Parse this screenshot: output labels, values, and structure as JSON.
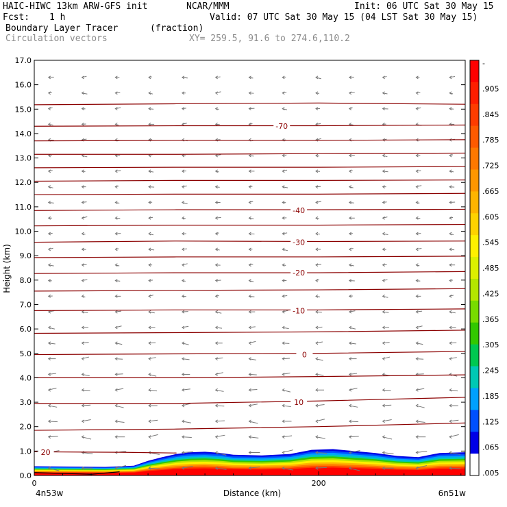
{
  "header": {
    "model": "HAIC-HIWC 13km ARW-GFS init",
    "org": "NCAR/MMM",
    "init": "Init: 06 UTC Sat 30 May 15",
    "fcst_label": "Fcst:",
    "fcst_value": "1 h",
    "valid": "Valid: 07 UTC Sat 30 May 15 (04 LST Sat 30 May 15)",
    "field_name": "Boundary Layer Tracer",
    "field_unit": "(fraction)",
    "vector_label": "Circulation vectors",
    "xy_label": "XY= 259.5, 91.6 to 274.6,110.2"
  },
  "chart_data": {
    "type": "cross-section",
    "xlabel": "Distance (km)",
    "ylabel": "Height (km)",
    "xlim": [
      0,
      303
    ],
    "ylim": [
      0,
      17
    ],
    "x_ticks": [
      0,
      200
    ],
    "x_tick_labels": [
      "0",
      "200"
    ],
    "y_ticks": [
      0,
      1,
      2,
      3,
      4,
      5,
      6,
      7,
      8,
      9,
      10,
      11,
      12,
      13,
      14,
      15,
      16,
      17
    ],
    "y_tick_labels": [
      "0.0",
      "1.0",
      "2.0",
      "3.0",
      "4.0",
      "5.0",
      "6.0",
      "7.0",
      "8.0",
      "9.0",
      "10.0",
      "11.0",
      "12.0",
      "13.0",
      "14.0",
      "15.0",
      "16.0",
      "17.0"
    ],
    "endpoint_left": "4n53w",
    "endpoint_right": "6n51w",
    "colorbar": {
      "labels": [
        "-",
        ".905",
        ".845",
        ".785",
        ".725",
        ".665",
        ".605",
        ".545",
        ".485",
        ".425",
        ".365",
        ".305",
        ".245",
        ".185",
        ".125",
        ".065",
        ".005"
      ],
      "colors": [
        "#ff0000",
        "#ff1e00",
        "#ff3c00",
        "#ff5a00",
        "#ff7800",
        "#ff9600",
        "#ffb400",
        "#ffd200",
        "#fff000",
        "#dcf000",
        "#b4e600",
        "#78dc00",
        "#32c800",
        "#00c850",
        "#00c8b4",
        "#00a0ff",
        "#0050ff",
        "#0000e6",
        "#ffffff"
      ]
    },
    "temperature_contours": [
      {
        "label": "20",
        "label_x": 8,
        "label_y": 0.95,
        "points": [
          [
            0,
            0.97
          ],
          [
            60,
            0.95
          ],
          [
            100,
            0.92
          ]
        ]
      },
      {
        "label": "",
        "points": [
          [
            0,
            1.85
          ],
          [
            100,
            1.9
          ],
          [
            200,
            2.0
          ],
          [
            303,
            2.15
          ]
        ]
      },
      {
        "label": "10",
        "label_x": 186,
        "label_y": 3.0,
        "points": [
          [
            0,
            2.95
          ],
          [
            100,
            2.95
          ],
          [
            200,
            3.05
          ],
          [
            303,
            3.2
          ]
        ]
      },
      {
        "label": "",
        "points": [
          [
            0,
            4.0
          ],
          [
            100,
            4.0
          ],
          [
            200,
            4.05
          ],
          [
            303,
            4.12
          ]
        ]
      },
      {
        "label": "0",
        "label_x": 190,
        "label_y": 4.95,
        "points": [
          [
            0,
            4.95
          ],
          [
            100,
            4.98
          ],
          [
            200,
            5.0
          ],
          [
            303,
            5.08
          ]
        ]
      },
      {
        "label": "",
        "points": [
          [
            0,
            5.82
          ],
          [
            100,
            5.85
          ],
          [
            200,
            5.88
          ],
          [
            303,
            5.95
          ]
        ]
      },
      {
        "label": "-10",
        "label_x": 186,
        "label_y": 6.75,
        "points": [
          [
            0,
            6.75
          ],
          [
            100,
            6.78
          ],
          [
            200,
            6.78
          ],
          [
            303,
            6.82
          ]
        ]
      },
      {
        "label": "",
        "points": [
          [
            0,
            7.55
          ],
          [
            100,
            7.58
          ],
          [
            200,
            7.6
          ],
          [
            303,
            7.65
          ]
        ]
      },
      {
        "label": "-20",
        "label_x": 186,
        "label_y": 8.3,
        "points": [
          [
            0,
            8.27
          ],
          [
            100,
            8.3
          ],
          [
            200,
            8.3
          ],
          [
            303,
            8.35
          ]
        ]
      },
      {
        "label": "",
        "points": [
          [
            0,
            8.92
          ],
          [
            100,
            8.95
          ],
          [
            200,
            8.95
          ],
          [
            303,
            8.98
          ]
        ]
      },
      {
        "label": "-30",
        "label_x": 186,
        "label_y": 9.55,
        "points": [
          [
            0,
            9.55
          ],
          [
            100,
            9.6
          ],
          [
            200,
            9.58
          ],
          [
            303,
            9.6
          ]
        ]
      },
      {
        "label": "",
        "points": [
          [
            0,
            10.22
          ],
          [
            100,
            10.25
          ],
          [
            200,
            10.25
          ],
          [
            303,
            10.28
          ]
        ]
      },
      {
        "label": "-40",
        "label_x": 186,
        "label_y": 10.85,
        "points": [
          [
            0,
            10.85
          ],
          [
            100,
            10.88
          ],
          [
            200,
            10.88
          ],
          [
            303,
            10.9
          ]
        ]
      },
      {
        "label": "",
        "points": [
          [
            0,
            11.5
          ],
          [
            100,
            11.52
          ],
          [
            200,
            11.52
          ],
          [
            303,
            11.55
          ]
        ]
      },
      {
        "label": "",
        "points": [
          [
            0,
            12.05
          ],
          [
            100,
            12.08
          ],
          [
            200,
            12.08
          ],
          [
            303,
            12.1
          ]
        ]
      },
      {
        "label": "",
        "points": [
          [
            0,
            12.6
          ],
          [
            100,
            12.62
          ],
          [
            200,
            12.62
          ],
          [
            303,
            12.65
          ]
        ]
      },
      {
        "label": "",
        "points": [
          [
            0,
            13.15
          ],
          [
            100,
            13.15
          ],
          [
            200,
            13.18
          ],
          [
            303,
            13.2
          ]
        ]
      },
      {
        "label": "",
        "points": [
          [
            0,
            13.7
          ],
          [
            100,
            13.72
          ],
          [
            200,
            13.72
          ],
          [
            303,
            13.75
          ]
        ]
      },
      {
        "label": "-70",
        "label_x": 174,
        "label_y": 14.3,
        "points": [
          [
            0,
            14.3
          ],
          [
            100,
            14.32
          ],
          [
            200,
            14.32
          ],
          [
            303,
            14.35
          ]
        ]
      },
      {
        "label": "",
        "points": [
          [
            0,
            15.18
          ],
          [
            100,
            15.22
          ],
          [
            200,
            15.25
          ],
          [
            303,
            15.2
          ]
        ]
      }
    ],
    "tracer_top": [
      [
        0,
        0.38
      ],
      [
        50,
        0.35
      ],
      [
        70,
        0.4
      ],
      [
        80,
        0.6
      ],
      [
        90,
        0.75
      ],
      [
        100,
        0.88
      ],
      [
        110,
        0.95
      ],
      [
        120,
        0.97
      ],
      [
        130,
        0.93
      ],
      [
        140,
        0.85
      ],
      [
        160,
        0.82
      ],
      [
        180,
        0.88
      ],
      [
        195,
        1.05
      ],
      [
        210,
        1.08
      ],
      [
        225,
        1.0
      ],
      [
        240,
        0.92
      ],
      [
        255,
        0.8
      ],
      [
        270,
        0.75
      ],
      [
        285,
        0.92
      ],
      [
        303,
        0.95
      ]
    ]
  }
}
